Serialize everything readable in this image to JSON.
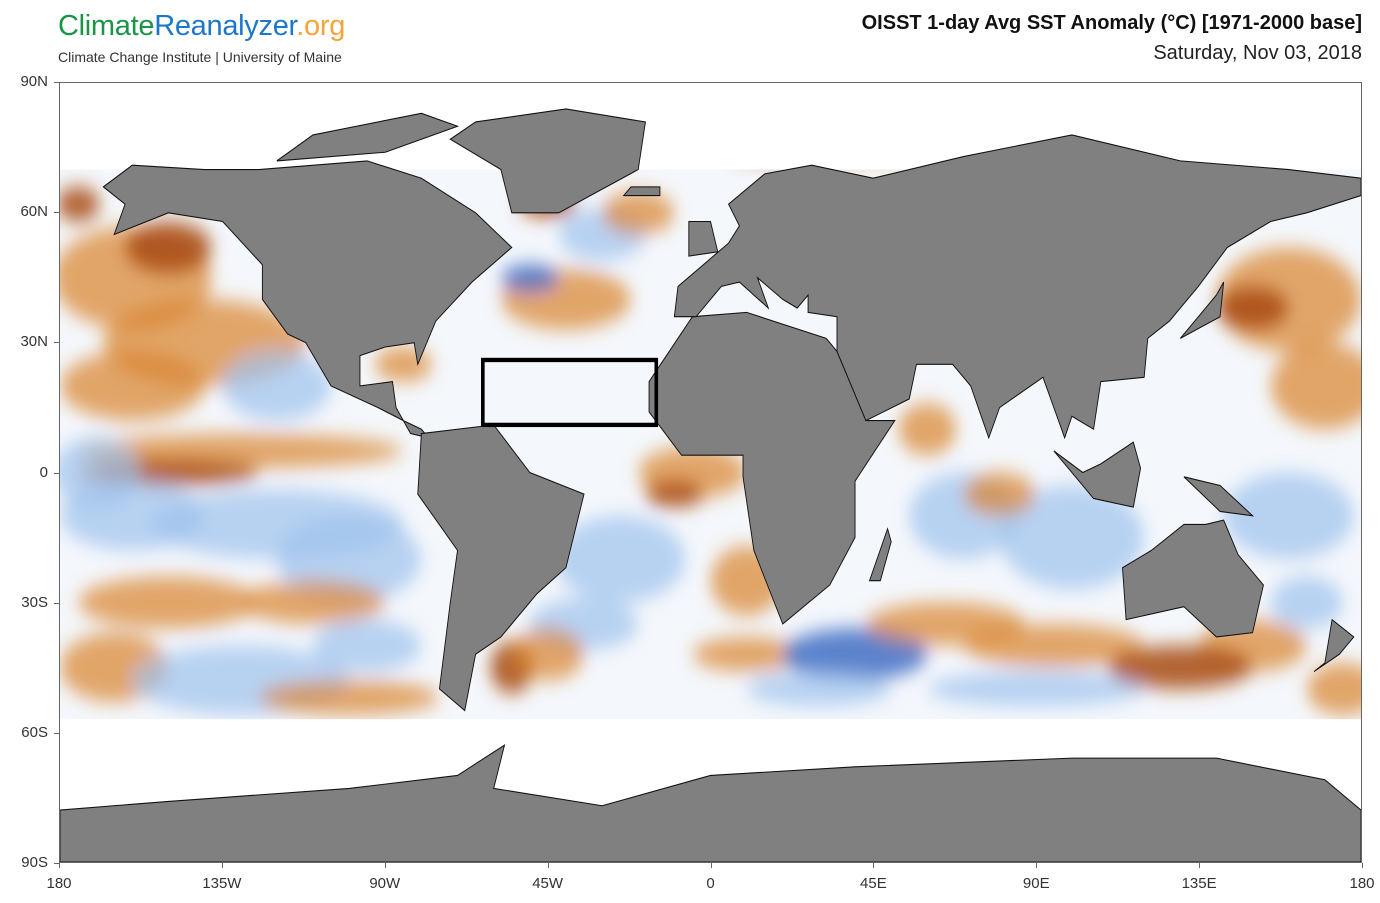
{
  "logo": {
    "part1": "Climate",
    "part2": "Reanalyzer",
    "part3": ".org"
  },
  "subtitle": "Climate Change Institute | University of Maine",
  "title": "OISST 1-day Avg SST Anomaly (°C) [1971-2000 base]",
  "date": "Saturday, Nov 03, 2018",
  "axes": {
    "y_labels": [
      "90N",
      "60N",
      "30N",
      "0",
      "30S",
      "60S",
      "90S"
    ],
    "y_values": [
      90,
      60,
      30,
      0,
      -30,
      -60,
      -90
    ],
    "x_labels": [
      "180",
      "135W",
      "90W",
      "45W",
      "0",
      "45E",
      "90E",
      "135E",
      "180"
    ],
    "x_values": [
      -180,
      -135,
      -90,
      -45,
      0,
      45,
      90,
      135,
      180
    ]
  },
  "highlight_box": {
    "lon_min": -63,
    "lon_max": -15,
    "lat_min": 11,
    "lat_max": 26
  },
  "colors": {
    "land": "#808080",
    "warm": "#d9822b",
    "warm_dark": "#a84a10",
    "cool": "#9cc2ec",
    "cool_dark": "#3e6fc4",
    "neutral": "#f6f8fc"
  }
}
